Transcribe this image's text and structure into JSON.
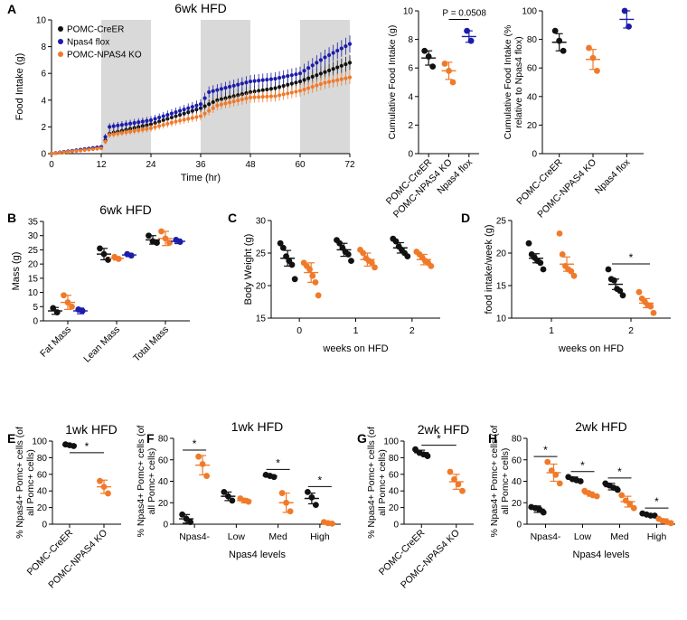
{
  "colors": {
    "ctrl": "#111111",
    "flox": "#1c1caa",
    "ko": "#f07a2a",
    "shade": "#d9d9d9",
    "axis": "#000000"
  },
  "panel_letters": [
    "A",
    "B",
    "C",
    "D",
    "E",
    "F",
    "G",
    "H"
  ],
  "chart_data": [
    {
      "id": "A1",
      "type": "line",
      "title": "6wk HFD",
      "xlabel": "Time (hr)",
      "ylabel": "Food Intake (g)",
      "xlim": [
        0,
        72
      ],
      "ylim": [
        0,
        10
      ],
      "xticks": [
        0,
        12,
        24,
        36,
        48,
        60,
        72
      ],
      "yticks": [
        0,
        2,
        4,
        6,
        8,
        10
      ],
      "shaded_periods": [
        [
          12,
          24
        ],
        [
          36,
          48
        ],
        [
          60,
          72
        ]
      ],
      "legend": [
        "POMC-CreER",
        "Npas4 flox",
        "POMC-NPAS4 KO"
      ],
      "series": [
        {
          "name": "POMC-CreER",
          "key": "ctrl",
          "points": [
            [
              0,
              0
            ],
            [
              12,
              0.5
            ],
            [
              14,
              1.5
            ],
            [
              24,
              2.2
            ],
            [
              30,
              2.8
            ],
            [
              36,
              3.4
            ],
            [
              40,
              4.0
            ],
            [
              48,
              4.6
            ],
            [
              54,
              4.9
            ],
            [
              60,
              5.4
            ],
            [
              66,
              6.1
            ],
            [
              72,
              6.8
            ]
          ]
        },
        {
          "name": "Npas4 flox",
          "key": "flox",
          "points": [
            [
              0,
              0
            ],
            [
              12,
              0.5
            ],
            [
              14,
              2.0
            ],
            [
              24,
              2.5
            ],
            [
              30,
              3.1
            ],
            [
              36,
              3.7
            ],
            [
              38,
              4.6
            ],
            [
              48,
              5.4
            ],
            [
              54,
              5.6
            ],
            [
              60,
              6.0
            ],
            [
              66,
              7.2
            ],
            [
              72,
              8.2
            ]
          ]
        },
        {
          "name": "POMC-NPAS4 KO",
          "key": "ko",
          "points": [
            [
              0,
              0
            ],
            [
              12,
              0.4
            ],
            [
              14,
              1.4
            ],
            [
              24,
              1.9
            ],
            [
              30,
              2.4
            ],
            [
              36,
              2.8
            ],
            [
              40,
              3.6
            ],
            [
              48,
              4.2
            ],
            [
              54,
              4.3
            ],
            [
              60,
              4.7
            ],
            [
              66,
              5.3
            ],
            [
              72,
              5.7
            ]
          ]
        }
      ]
    },
    {
      "id": "A2",
      "type": "scatter",
      "ylabel": "Cumulative Food Intake (g)",
      "ylim": [
        0,
        10
      ],
      "yticks": [
        0,
        2,
        4,
        6,
        8,
        10
      ],
      "categories": [
        "POMC-CreER",
        "POMC-NPAS4 KO",
        "Npas4 flox"
      ],
      "series": [
        {
          "key": "ctrl",
          "points": [
            7.2,
            6.8,
            6.1
          ],
          "mean": 6.7,
          "sem": 0.5
        },
        {
          "key": "ko",
          "points": [
            6.3,
            5.8,
            5.0
          ],
          "mean": 5.8,
          "sem": 0.6
        },
        {
          "key": "flox",
          "points": [
            8.6,
            7.9
          ],
          "mean": 8.2,
          "sem": 0.4
        }
      ],
      "annotation": "P = 0.0508"
    },
    {
      "id": "A3",
      "type": "scatter",
      "ylabel": "Cumulative Food Intake (% relative to Npas4 flox)",
      "ylim": [
        0,
        100
      ],
      "yticks": [
        0,
        20,
        40,
        60,
        80,
        100
      ],
      "categories": [
        "POMC-CreER",
        "POMC-NPAS4 KO",
        "Npas4 flox"
      ],
      "series": [
        {
          "key": "ctrl",
          "points": [
            86,
            79,
            72
          ],
          "mean": 78,
          "sem": 6
        },
        {
          "key": "ko",
          "points": [
            74,
            67,
            58
          ],
          "mean": 66,
          "sem": 7
        },
        {
          "key": "flox",
          "points": [
            100,
            89
          ],
          "mean": 94,
          "sem": 6
        }
      ]
    },
    {
      "id": "B",
      "type": "scatter",
      "title": "6wk HFD",
      "ylabel": "Mass (g)",
      "ylim": [
        0,
        35
      ],
      "yticks": [
        0,
        5,
        10,
        15,
        20,
        25,
        30,
        35
      ],
      "categories": [
        "Fat Mass",
        "Lean Mass",
        "Total Mass"
      ],
      "groups": [
        "ctrl",
        "ko",
        "flox"
      ],
      "data": [
        [
          {
            "points": [
              4.5,
              3.0
            ],
            "mean": 3.5,
            "sem": 1.2
          },
          {
            "points": [
              9.0,
              6.5,
              5.0
            ],
            "mean": 6.5,
            "sem": 2.5
          },
          {
            "points": [
              4.0,
              3.5
            ],
            "mean": 3.5,
            "sem": 1.0
          }
        ],
        [
          {
            "points": [
              25.5,
              23.5,
              21.5
            ],
            "mean": 23.5,
            "sem": 2.0
          },
          {
            "points": [
              22.5,
              21.8
            ],
            "mean": 22.0,
            "sem": 0.6
          },
          {
            "points": [
              23.5,
              23.0
            ],
            "mean": 23.2,
            "sem": 0.6
          }
        ],
        [
          {
            "points": [
              30.0,
              28.0,
              27.5
            ],
            "mean": 28.5,
            "sem": 1.5
          },
          {
            "points": [
              31.5,
              29.0,
              27.5
            ],
            "mean": 29.0,
            "sem": 2.5
          },
          {
            "points": [
              28.5,
              27.8
            ],
            "mean": 28.0,
            "sem": 0.8
          }
        ]
      ]
    },
    {
      "id": "C",
      "type": "scatter",
      "xlabel": "weeks on HFD",
      "ylabel": "Body Weight (g)",
      "ylim": [
        15,
        30
      ],
      "yticks": [
        15,
        20,
        25,
        30
      ],
      "categories": [
        "0",
        "1",
        "2"
      ],
      "groups": [
        "ctrl",
        "ko"
      ],
      "data": [
        [
          {
            "points": [
              26.5,
              25.8,
              24.5,
              23.8,
              23.2,
              21.0
            ],
            "mean": 24.2,
            "sem": 1.2
          },
          {
            "points": [
              23.5,
              23.0,
              22.5,
              21.5,
              20.5,
              18.5
            ],
            "mean": 22.0,
            "sem": 1.5
          }
        ],
        [
          {
            "points": [
              27.0,
              26.5,
              25.8,
              25.2,
              24.8,
              23.8
            ],
            "mean": 25.5,
            "sem": 1.0
          },
          {
            "points": [
              25.5,
              25.0,
              24.2,
              23.8,
              23.5,
              22.8
            ],
            "mean": 24.0,
            "sem": 1.0
          }
        ],
        [
          {
            "points": [
              27.2,
              26.8,
              26.0,
              25.5,
              25.0,
              24.5
            ],
            "mean": 25.8,
            "sem": 0.8
          },
          {
            "points": [
              25.2,
              24.8,
              24.3,
              23.8,
              23.5,
              23.0
            ],
            "mean": 24.0,
            "sem": 0.8
          }
        ]
      ]
    },
    {
      "id": "D",
      "type": "scatter",
      "xlabel": "weeks on HFD",
      "ylabel": "food intake/week (g)",
      "ylim": [
        10,
        25
      ],
      "yticks": [
        10,
        15,
        20,
        25
      ],
      "categories": [
        "1",
        "2"
      ],
      "groups": [
        "ctrl",
        "ko"
      ],
      "data": [
        [
          {
            "points": [
              21.5,
              19.8,
              19.3,
              18.8,
              18.5,
              17.5
            ],
            "mean": 19.2,
            "sem": 0.7
          },
          {
            "points": [
              23.0,
              19.8,
              18.0,
              17.5,
              17.2,
              16.5
            ],
            "mean": 18.3,
            "sem": 1.1
          }
        ],
        [
          {
            "points": [
              17.5,
              16.0,
              15.8,
              14.5,
              14.2,
              13.5
            ],
            "mean": 15.2,
            "sem": 0.8
          },
          {
            "points": [
              14.0,
              13.0,
              12.5,
              12.0,
              11.8,
              10.8
            ],
            "mean": 12.3,
            "sem": 0.7
          }
        ]
      ],
      "significance": [
        {
          "category": "2",
          "label": "*"
        }
      ]
    },
    {
      "id": "E",
      "type": "scatter",
      "title": "1wk HFD",
      "ylabel": "% Npas4+ Pomc+ cells (of all Pomc+ cells)",
      "ylim": [
        0,
        100
      ],
      "yticks": [
        0,
        20,
        40,
        60,
        80,
        100
      ],
      "categories": [
        "POMC-CreER",
        "POMC-NPAS4 KO"
      ],
      "series": [
        {
          "key": "ctrl",
          "points": [
            96,
            95,
            94
          ],
          "mean": 95,
          "sem": 1
        },
        {
          "key": "ko",
          "points": [
            52,
            45,
            37
          ],
          "mean": 45,
          "sem": 8
        }
      ],
      "significance": "*"
    },
    {
      "id": "F",
      "type": "scatter",
      "title": "1wk HFD",
      "xlabel": "Npas4 levels",
      "ylabel": "% Npas4+ Pomc+ cells (of all Pomc+ cells)",
      "ylim": [
        0,
        80
      ],
      "yticks": [
        0,
        20,
        40,
        60,
        80
      ],
      "categories": [
        "Npas4-",
        "Low",
        "Med",
        "High"
      ],
      "groups": [
        "ctrl",
        "ko"
      ],
      "data": [
        [
          {
            "points": [
              9,
              5,
              2
            ],
            "mean": 5,
            "sem": 4
          },
          {
            "points": [
              63,
              56,
              45
            ],
            "mean": 55,
            "sem": 9
          }
        ],
        [
          {
            "points": [
              30,
              26,
              22
            ],
            "mean": 26,
            "sem": 4
          },
          {
            "points": [
              24,
              22,
              21
            ],
            "mean": 22,
            "sem": 2
          }
        ],
        [
          {
            "points": [
              46,
              45,
              44
            ],
            "mean": 45,
            "sem": 1
          },
          {
            "points": [
              29,
              20,
              12
            ],
            "mean": 20,
            "sem": 9
          }
        ],
        [
          {
            "points": [
              30,
              25,
              18
            ],
            "mean": 24,
            "sem": 5
          },
          {
            "points": [
              2,
              1,
              0.5
            ],
            "mean": 1,
            "sem": 1
          }
        ]
      ],
      "significance": [
        {
          "category": "Npas4-",
          "label": "*"
        },
        {
          "category": "Med",
          "label": "*"
        },
        {
          "category": "High",
          "label": "*"
        }
      ]
    },
    {
      "id": "G",
      "type": "scatter",
      "title": "2wk HFD",
      "ylabel": "% Npas4+ Pomc+ cells (of all Pomc+ cells)",
      "ylim": [
        0,
        100
      ],
      "yticks": [
        0,
        20,
        40,
        60,
        80,
        100
      ],
      "categories": [
        "POMC-CreER",
        "POMC-NPAS4 KO"
      ],
      "series": [
        {
          "key": "ctrl",
          "points": [
            90,
            86,
            84,
            82
          ],
          "mean": 86,
          "sem": 3
        },
        {
          "key": "ko",
          "points": [
            63,
            54,
            48,
            40
          ],
          "mean": 51,
          "sem": 9
        }
      ],
      "significance": "*"
    },
    {
      "id": "H",
      "type": "scatter",
      "title": "2wk HFD",
      "xlabel": "Npas4 levels",
      "ylabel": "% Npas4+ Pomc+ cells (of all Pomc+ cells)",
      "ylim": [
        0,
        80
      ],
      "yticks": [
        0,
        20,
        40,
        60,
        80
      ],
      "categories": [
        "Npas4-",
        "Low",
        "Med",
        "High"
      ],
      "groups": [
        "ctrl",
        "ko"
      ],
      "data": [
        [
          {
            "points": [
              16,
              15,
              14,
              11
            ],
            "mean": 14,
            "sem": 3
          },
          {
            "points": [
              58,
              50,
              46,
              38
            ],
            "mean": 48,
            "sem": 8
          }
        ],
        [
          {
            "points": [
              44,
              42,
              41,
              40
            ],
            "mean": 42,
            "sem": 2
          },
          {
            "points": [
              31,
              29,
              27,
              26
            ],
            "mean": 28,
            "sem": 2
          }
        ],
        [
          {
            "points": [
              38,
              36,
              34,
              32
            ],
            "mean": 35,
            "sem": 3
          },
          {
            "points": [
              27,
              22,
              19,
              15
            ],
            "mean": 21,
            "sem": 5
          }
        ],
        [
          {
            "points": [
              10,
              9,
              8,
              8
            ],
            "mean": 9,
            "sem": 1
          },
          {
            "points": [
              5,
              3,
              2,
              1
            ],
            "mean": 3,
            "sem": 2
          }
        ]
      ],
      "significance": [
        {
          "category": "Npas4-",
          "label": "*"
        },
        {
          "category": "Low",
          "label": "*"
        },
        {
          "category": "Med",
          "label": "*"
        },
        {
          "category": "High",
          "label": "*"
        }
      ]
    }
  ]
}
